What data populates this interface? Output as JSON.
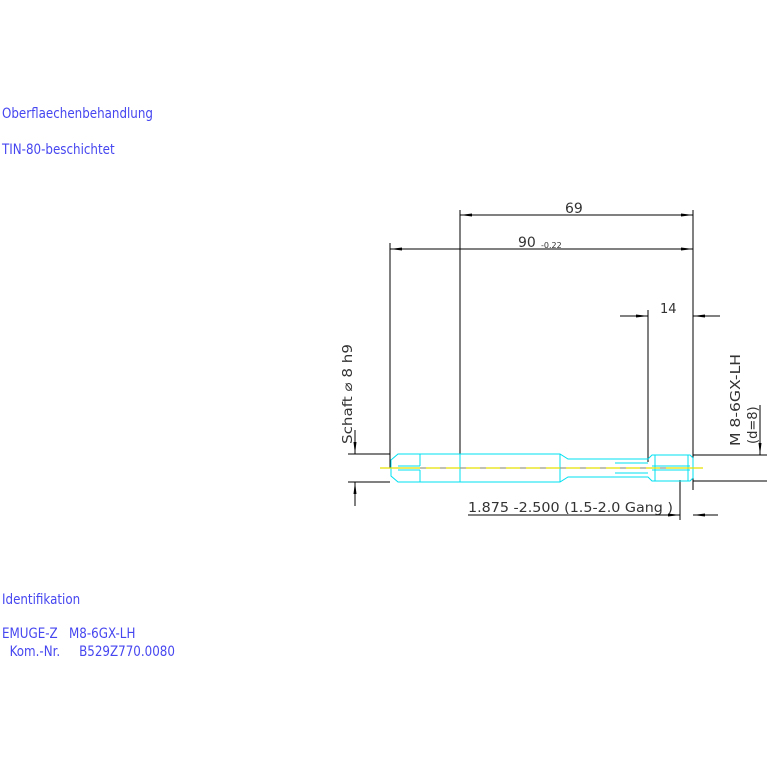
{
  "notes": {
    "surface_heading": "Oberflaechenbehandlung",
    "surface_value": "TIN-80-beschichtet",
    "ident_heading": "Identifikation",
    "ident_line1": "EMUGE-Z   M8-6GX-LH",
    "ident_line2": "  Kom.-Nr.     B529Z770.0080"
  },
  "dimensions": {
    "d69": "69",
    "d90": "90",
    "d90_tol": "-0.22",
    "d14": "14",
    "shaft": "Schaft  ⌀ 8  h9",
    "thread": "M  8-6GX-LH",
    "thread_d": "(d=8)",
    "chamfer": "1.875  -2.500 (1.5-2.0  Gang   )"
  },
  "colors": {
    "text": "#4646f0",
    "outline": "#00e0f0",
    "centerline": "#e8e000",
    "dim": "#000000"
  }
}
